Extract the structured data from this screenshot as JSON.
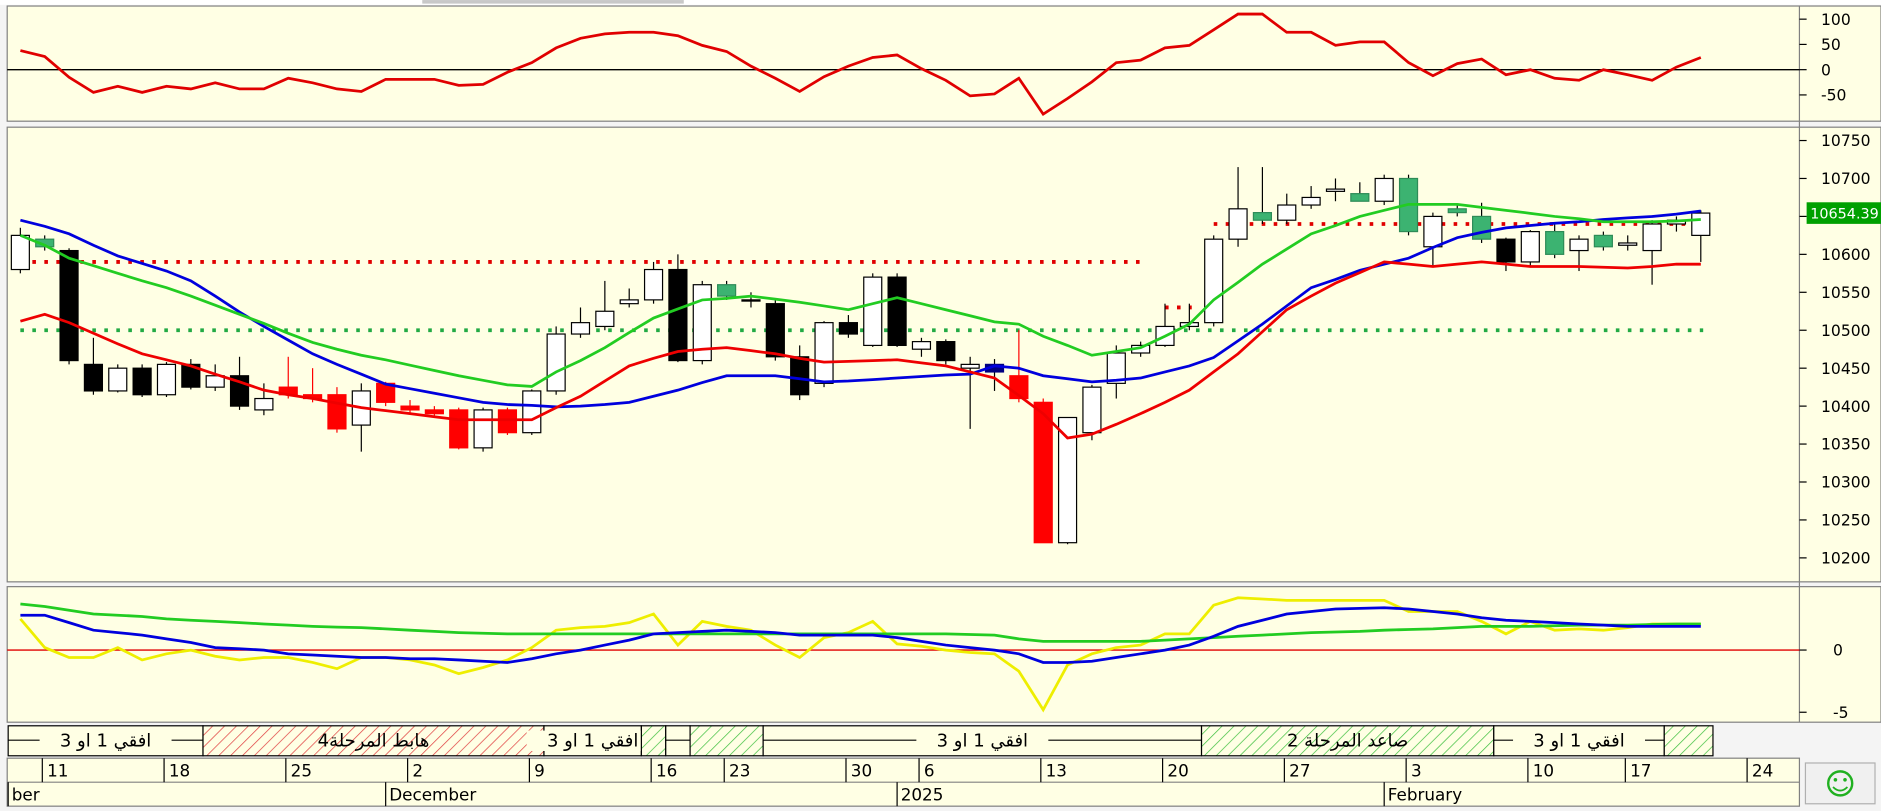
{
  "chart_data": [
    {
      "type": "line",
      "ylim": [
        -102,
        126
      ],
      "yticks": [
        100,
        50,
        0,
        -50
      ],
      "ref_line": 0,
      "ref_color": "#000000",
      "series": [
        {
          "color": "#e00000",
          "values": [
            38,
            26,
            -15,
            -45,
            -33,
            -45,
            -33,
            -38,
            -26,
            -38,
            -38,
            -17,
            -26,
            -38,
            -43,
            -19,
            -19,
            -19,
            -31,
            -29,
            -5,
            14,
            43,
            62,
            71,
            74,
            74,
            67,
            48,
            36,
            7,
            -17,
            -43,
            -14,
            7,
            24,
            29,
            2,
            -21,
            -52,
            -48,
            -17,
            -88,
            -57,
            -24,
            14,
            19,
            43,
            48,
            79,
            110,
            110,
            74,
            74,
            48,
            55,
            55,
            14,
            -12,
            12,
            21,
            -10,
            0,
            -17,
            -21,
            0,
            -10,
            -21,
            5,
            24
          ]
        }
      ]
    },
    {
      "type": "candlestick",
      "ylim": [
        10170,
        10766
      ],
      "yticks": [
        10200,
        10250,
        10300,
        10350,
        10400,
        10450,
        10500,
        10550,
        10600,
        10650,
        10700,
        10750
      ],
      "open": [
        10580,
        10620,
        10605,
        10455,
        10420,
        10450,
        10415,
        10455,
        10425,
        10440,
        10395,
        10425,
        10415,
        10415,
        10375,
        10430,
        10400,
        10395,
        10395,
        10345,
        10395,
        10365,
        10420,
        10495,
        10505,
        10535,
        10540,
        10580,
        10460,
        10560,
        10540,
        10535,
        10465,
        10430,
        10510,
        10480,
        10570,
        10475,
        10485,
        10450,
        10455,
        10440,
        10405,
        10220,
        10365,
        10430,
        10470,
        10480,
        10505,
        10510,
        10620,
        10655,
        10645,
        10665,
        10683,
        10680,
        10670,
        10700,
        10610,
        10660,
        10650,
        10620,
        10590,
        10630,
        10605,
        10625,
        10612,
        10605,
        10640,
        10625
      ],
      "high": [
        10635,
        10625,
        10608,
        10490,
        10455,
        10455,
        10458,
        10462,
        10455,
        10465,
        10430,
        10465,
        10450,
        10425,
        10430,
        10432,
        10408,
        10400,
        10398,
        10398,
        10398,
        10422,
        10505,
        10530,
        10565,
        10555,
        10590,
        10600,
        10565,
        10565,
        10550,
        10540,
        10480,
        10512,
        10520,
        10575,
        10575,
        10490,
        10488,
        10465,
        10462,
        10500,
        10410,
        10385,
        10428,
        10480,
        10485,
        10535,
        10535,
        10625,
        10715,
        10715,
        10680,
        10690,
        10700,
        10695,
        10705,
        10705,
        10655,
        10665,
        10668,
        10622,
        10632,
        10640,
        10625,
        10630,
        10625,
        10645,
        10650,
        10658
      ],
      "low": [
        10575,
        10605,
        10455,
        10415,
        10418,
        10412,
        10412,
        10422,
        10420,
        10395,
        10388,
        10410,
        10405,
        10365,
        10340,
        10400,
        10390,
        10385,
        10343,
        10340,
        10362,
        10362,
        10415,
        10490,
        10500,
        10530,
        10535,
        10458,
        10455,
        10540,
        10530,
        10460,
        10408,
        10425,
        10490,
        10478,
        10478,
        10465,
        10455,
        10370,
        10420,
        10405,
        10220,
        10218,
        10355,
        10410,
        10465,
        10478,
        10500,
        10505,
        10610,
        10640,
        10640,
        10660,
        10670,
        10670,
        10665,
        10625,
        10585,
        10650,
        10615,
        10578,
        10585,
        10595,
        10578,
        10605,
        10605,
        10560,
        10630,
        10590
      ],
      "close": [
        10625,
        10610,
        10460,
        10420,
        10450,
        10415,
        10455,
        10425,
        10440,
        10400,
        10410,
        10415,
        10410,
        10370,
        10420,
        10405,
        10395,
        10390,
        10345,
        10395,
        10365,
        10420,
        10495,
        10510,
        10525,
        10540,
        10580,
        10460,
        10560,
        10545,
        10540,
        10465,
        10415,
        10510,
        10495,
        10570,
        10480,
        10485,
        10460,
        10455,
        10445,
        10410,
        10220,
        10385,
        10425,
        10470,
        10480,
        10505,
        10510,
        10620,
        10660,
        10645,
        10665,
        10675,
        10686,
        10670,
        10700,
        10630,
        10650,
        10655,
        10620,
        10590,
        10630,
        10600,
        10620,
        10610,
        10615,
        10640,
        10645,
        10654.39
      ],
      "candle_colors": [
        "#ffffff",
        "#3cb371",
        "#000000",
        "#000000",
        "#ffffff",
        "#000000",
        "#ffffff",
        "#000000",
        "#ffffff",
        "#000000",
        "#ffffff",
        "#ff0000",
        "#ff0000",
        "#ff0000",
        "#ffffff",
        "#ff0000",
        "#ff0000",
        "#ff0000",
        "#ff0000",
        "#ffffff",
        "#ff0000",
        "#ffffff",
        "#ffffff",
        "#ffffff",
        "#ffffff",
        "#ffffff",
        "#ffffff",
        "#000000",
        "#ffffff",
        "#3cb371",
        "#ffffff",
        "#000000",
        "#000000",
        "#ffffff",
        "#000000",
        "#ffffff",
        "#000000",
        "#ffffff",
        "#000000",
        "#ffffff",
        "#000080",
        "#ff0000",
        "#ff0000",
        "#ffffff",
        "#ffffff",
        "#ffffff",
        "#ffffff",
        "#ffffff",
        "#ffffff",
        "#ffffff",
        "#ffffff",
        "#3cb371",
        "#ffffff",
        "#ffffff",
        "#ffffff",
        "#3cb371",
        "#ffffff",
        "#3cb371",
        "#ffffff",
        "#3cb371",
        "#3cb371",
        "#000000",
        "#ffffff",
        "#3cb371",
        "#ffffff",
        "#3cb371",
        "#ffffff",
        "#ffffff",
        "#ffffff",
        "#ffffff"
      ],
      "series": [
        {
          "color": "#0000dd",
          "values": [
            10645,
            10637,
            10627,
            10612,
            10598,
            10588,
            10578,
            10565,
            10545,
            10524,
            10505,
            10487,
            10469,
            10455,
            10442,
            10429,
            10423,
            10417,
            10411,
            10405,
            10402,
            10401,
            10399,
            10400,
            10402,
            10405,
            10413,
            10421,
            10431,
            10440,
            10440,
            10440,
            10436,
            10432,
            10433,
            10435,
            10437,
            10439,
            10441,
            10442,
            10453,
            10450,
            10440,
            10436,
            10432,
            10434,
            10437,
            10445,
            10453,
            10464,
            10486,
            10508,
            10532,
            10556,
            10567,
            10579,
            10587,
            10595,
            10609,
            10622,
            10629,
            10635,
            10638,
            10641,
            10643,
            10646,
            10648,
            10650,
            10653,
            10657
          ]
        },
        {
          "color": "#22cc22",
          "values": [
            10625,
            10612,
            10595,
            10585,
            10575,
            10565,
            10556,
            10545,
            10533,
            10521,
            10509,
            10496,
            10484,
            10475,
            10467,
            10461,
            10454,
            10447,
            10440,
            10434,
            10428,
            10426,
            10445,
            10460,
            10477,
            10497,
            10516,
            10528,
            10540,
            10542,
            10545,
            10541,
            10537,
            10532,
            10527,
            10535,
            10543,
            10535,
            10527,
            10519,
            10511,
            10508,
            10492,
            10480,
            10467,
            10472,
            10477,
            10492,
            10508,
            10540,
            10563,
            10587,
            10607,
            10627,
            10638,
            10650,
            10658,
            10666,
            10666,
            10666,
            10662,
            10658,
            10654,
            10650,
            10647,
            10643,
            10643,
            10643,
            10644,
            10646
          ]
        },
        {
          "color": "#ee0000",
          "values": [
            10512,
            10521,
            10510,
            10496,
            10482,
            10469,
            10461,
            10453,
            10442,
            10432,
            10421,
            10415,
            10410,
            10404,
            10398,
            10394,
            10390,
            10386,
            10382,
            10382,
            10382,
            10382,
            10398,
            10413,
            10433,
            10453,
            10463,
            10472,
            10475,
            10477,
            10473,
            10469,
            10463,
            10458,
            10459,
            10460,
            10461,
            10457,
            10453,
            10445,
            10437,
            10414,
            10390,
            10358,
            10363,
            10376,
            10390,
            10405,
            10421,
            10445,
            10469,
            10498,
            10527,
            10545,
            10562,
            10576,
            10590,
            10587,
            10584,
            10587,
            10590,
            10587,
            10584,
            10584,
            10584,
            10583,
            10582,
            10584,
            10587,
            10587
          ]
        }
      ],
      "levels": [
        {
          "value": 10590,
          "start": 0,
          "end": 46,
          "color": "#e00000"
        },
        {
          "value": 10500,
          "start": 0,
          "end": 69,
          "color": "#22aa44"
        },
        {
          "value": 10640,
          "start": 49,
          "end": 69,
          "color": "#e00000"
        },
        {
          "value": 10530,
          "start": 47,
          "end": 48,
          "color": "#e00000"
        }
      ],
      "last_price": 10654.39,
      "last_price_color": "#00a000"
    },
    {
      "type": "line",
      "ylim": [
        -5.8,
        5
      ],
      "yticks": [
        0,
        -5
      ],
      "ref_line": 0,
      "ref_color": "#e00000",
      "series": [
        {
          "color": "#eeee00",
          "values": [
            2.5,
            0.2,
            -0.6,
            -0.6,
            0.2,
            -0.8,
            -0.3,
            0,
            -0.5,
            -0.8,
            -0.6,
            -0.6,
            -1,
            -1.5,
            -0.6,
            -0.6,
            -0.8,
            -1.2,
            -1.9,
            -1.4,
            -0.8,
            0.2,
            1.6,
            1.8,
            1.9,
            2.2,
            2.9,
            0.4,
            2.3,
            1.9,
            1.6,
            0.4,
            -0.6,
            1,
            1.4,
            2.3,
            0.5,
            0.3,
            0,
            -0.2,
            -0.3,
            -1.7,
            -4.8,
            -1.2,
            -0.3,
            0.2,
            0.4,
            1.3,
            1.3,
            3.6,
            4.2,
            4.1,
            4,
            4,
            4,
            4,
            4,
            3.1,
            3.1,
            3.1,
            2.3,
            1.3,
            2.3,
            1.6,
            1.7,
            1.6,
            1.8,
            2.1,
            2.1,
            2.1
          ]
        },
        {
          "color": "#22cc22",
          "values": [
            3.7,
            3.5,
            3.2,
            2.9,
            2.8,
            2.7,
            2.5,
            2.4,
            2.3,
            2.2,
            2.1,
            2,
            1.9,
            1.85,
            1.8,
            1.7,
            1.6,
            1.5,
            1.4,
            1.35,
            1.3,
            1.3,
            1.3,
            1.3,
            1.3,
            1.3,
            1.3,
            1.3,
            1.3,
            1.3,
            1.3,
            1.3,
            1.3,
            1.3,
            1.3,
            1.3,
            1.3,
            1.3,
            1.3,
            1.25,
            1.2,
            0.9,
            0.7,
            0.7,
            0.7,
            0.7,
            0.7,
            0.8,
            0.9,
            1,
            1.1,
            1.2,
            1.3,
            1.4,
            1.45,
            1.5,
            1.6,
            1.65,
            1.7,
            1.8,
            1.9,
            1.9,
            1.9,
            1.95,
            2,
            2,
            2,
            2.05,
            2.1,
            2.1
          ]
        },
        {
          "color": "#0000dd",
          "values": [
            2.8,
            2.8,
            2.2,
            1.6,
            1.4,
            1.2,
            0.9,
            0.6,
            0.2,
            0.1,
            0,
            -0.3,
            -0.4,
            -0.5,
            -0.6,
            -0.6,
            -0.7,
            -0.7,
            -0.8,
            -0.9,
            -1,
            -0.7,
            -0.3,
            0,
            0.4,
            0.8,
            1.3,
            1.4,
            1.5,
            1.6,
            1.5,
            1.4,
            1.2,
            1.2,
            1.2,
            1.2,
            1,
            0.7,
            0.4,
            0.2,
            0,
            -0.3,
            -1,
            -1,
            -0.9,
            -0.6,
            -0.3,
            0,
            0.4,
            1.1,
            1.9,
            2.4,
            2.9,
            3.1,
            3.3,
            3.35,
            3.4,
            3.3,
            3.1,
            2.9,
            2.6,
            2.4,
            2.3,
            2.2,
            2.1,
            2,
            1.9,
            1.9,
            1.9,
            1.9
          ]
        }
      ]
    }
  ],
  "x_axis": {
    "xlim": [
      -0.54,
      73.05
    ],
    "day_ticks": [
      {
        "value": 1,
        "label": "11"
      },
      {
        "value": 6,
        "label": "18"
      },
      {
        "value": 11,
        "label": "25"
      },
      {
        "value": 16,
        "label": "2"
      },
      {
        "value": 21,
        "label": "9"
      },
      {
        "value": 26,
        "label": "16"
      },
      {
        "value": 29,
        "label": "23"
      },
      {
        "value": 34,
        "label": "30"
      },
      {
        "value": 37,
        "label": "6"
      },
      {
        "value": 42,
        "label": "13"
      },
      {
        "value": 47,
        "label": "20"
      },
      {
        "value": 52,
        "label": "27"
      },
      {
        "value": 57,
        "label": "3"
      },
      {
        "value": 62,
        "label": "10"
      },
      {
        "value": 66,
        "label": "17"
      },
      {
        "value": 71,
        "label": "24"
      }
    ],
    "month_ticks": [
      {
        "value": -0.5,
        "label": "ber"
      },
      {
        "value": 15,
        "label": "December"
      },
      {
        "value": 36,
        "label": "2025"
      },
      {
        "value": 56,
        "label": "February"
      }
    ]
  },
  "phases": [
    {
      "label": "افقي 1 او 3",
      "start": -0.5,
      "end": 7.5,
      "style": "plain"
    },
    {
      "label": "هابط المرحلة4",
      "start": 7.5,
      "end": 21.5,
      "style": "down"
    },
    {
      "label": "افقي 1 او 3",
      "start": 21.5,
      "end": 25.5,
      "style": "plain"
    },
    {
      "label": null,
      "start": 25.5,
      "end": 26.5,
      "style": "up"
    },
    {
      "label": null,
      "start": 26.5,
      "end": 27.5,
      "style": "plain"
    },
    {
      "label": null,
      "start": 27.5,
      "end": 30.5,
      "style": "up"
    },
    {
      "label": "افقي 1 او 3",
      "start": 30.5,
      "end": 48.5,
      "style": "plain"
    },
    {
      "label": "صاعد المرحلة 2",
      "start": 48.5,
      "end": 60.5,
      "style": "up"
    },
    {
      "label": "افقي 1 او 3",
      "start": 60.5,
      "end": 67.5,
      "style": "plain"
    },
    {
      "label": null,
      "start": 67.5,
      "end": 69.5,
      "style": "up"
    }
  ]
}
